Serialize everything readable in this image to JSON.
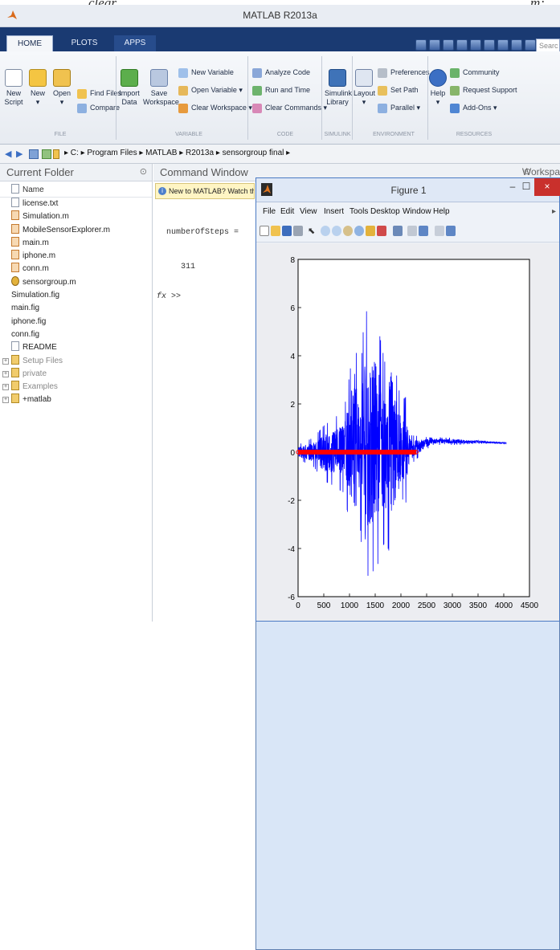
{
  "clipped_top": {
    "left": "clear",
    "right": "m;"
  },
  "window_title": "MATLAB R2013a",
  "tabs": [
    "HOME",
    "PLOTS",
    "APPS"
  ],
  "quick_search_placeholder": "Searc",
  "ribbon": {
    "file": {
      "new_script": [
        "New",
        "Script"
      ],
      "new": [
        "New",
        "▾"
      ],
      "open": [
        "Open",
        "▾"
      ],
      "find_files": "Find Files",
      "compare": "Compare",
      "group": "FILE"
    },
    "variable": {
      "import_data": [
        "Import",
        "Data"
      ],
      "save_workspace": [
        "Save",
        "Workspace"
      ],
      "new_variable": "New Variable",
      "open_variable": "Open Variable ▾",
      "clear_workspace": "Clear Workspace ▾",
      "group": "VARIABLE"
    },
    "code": {
      "analyze_code": "Analyze Code",
      "run_and_time": "Run and Time",
      "clear_commands": "Clear Commands ▾",
      "group": "CODE"
    },
    "simulink": {
      "library": [
        "Simulink",
        "Library"
      ],
      "group": "SIMULINK"
    },
    "environment": {
      "layout": [
        "Layout",
        "▾"
      ],
      "preferences": "Preferences",
      "set_path": "Set Path",
      "parallel": "Parallel ▾",
      "group": "ENVIRONMENT"
    },
    "resources": {
      "help": [
        "Help",
        "▾"
      ],
      "community": "Community",
      "request_support": "Request Support",
      "addons": "Add-Ons ▾",
      "group": "RESOURCES"
    }
  },
  "address_path": "▸ C: ▸ Program Files ▸ MATLAB ▸ R2013a ▸ sensorgroup final ▸",
  "current_folder": {
    "title": "Current Folder",
    "column": "Name",
    "files": [
      {
        "name": "license.txt",
        "kind": "txt"
      },
      {
        "name": "Simulation.m",
        "kind": "m"
      },
      {
        "name": "MobileSensorExplorer.m",
        "kind": "m"
      },
      {
        "name": "main.m",
        "kind": "m"
      },
      {
        "name": "iphone.m",
        "kind": "m"
      },
      {
        "name": "conn.m",
        "kind": "m"
      },
      {
        "name": "sensorgroup.m",
        "kind": "g"
      },
      {
        "name": "Simulation.fig",
        "kind": "fig"
      },
      {
        "name": "main.fig",
        "kind": "fig"
      },
      {
        "name": "iphone.fig",
        "kind": "fig"
      },
      {
        "name": "conn.fig",
        "kind": "fig"
      },
      {
        "name": "README",
        "kind": "txt"
      }
    ],
    "folders": [
      "Setup Files",
      "private",
      "Examples",
      "+matlab"
    ]
  },
  "command_window": {
    "title": "Command Window",
    "notice": "New to MATLAB? Watch this Vi",
    "output_var": "numberOfSteps =",
    "output_val": "311",
    "prompt": "fx >>"
  },
  "workspace_tab": "Workspa",
  "figure": {
    "title": "Figure 1",
    "menus": [
      "File",
      "Edit",
      "View",
      "Insert",
      "Tools",
      "Desktop",
      "Window",
      "Help"
    ]
  },
  "chart_data": {
    "type": "line",
    "xlim": [
      0,
      4500
    ],
    "ylim": [
      -6,
      8
    ],
    "xticks": [
      0,
      500,
      1000,
      1500,
      2000,
      2500,
      3000,
      3500,
      4000,
      4500
    ],
    "yticks": [
      -6,
      -4,
      -2,
      0,
      2,
      4,
      6,
      8
    ],
    "grid": false,
    "series": [
      {
        "color": "#0000ff",
        "style": "line",
        "description_points": [
          [
            0,
            0.3
          ],
          [
            300,
            0.6
          ],
          [
            500,
            1.1
          ],
          [
            700,
            1.4
          ],
          [
            900,
            1.8
          ],
          [
            1000,
            3.2
          ],
          [
            1100,
            4.8
          ],
          [
            1200,
            2.6
          ],
          [
            1300,
            6.2
          ],
          [
            1400,
            5.1
          ],
          [
            1500,
            5.8
          ],
          [
            1600,
            4.7
          ],
          [
            1700,
            3.6
          ],
          [
            1800,
            5.2
          ],
          [
            1900,
            3.4
          ],
          [
            2000,
            2.1
          ],
          [
            2100,
            2.3
          ],
          [
            2200,
            0.7
          ],
          [
            2600,
            0.6
          ],
          [
            3000,
            0.6
          ],
          [
            3500,
            0.5
          ],
          [
            4050,
            0.4
          ]
        ],
        "min_envelope": [
          [
            0,
            -0.3
          ],
          [
            300,
            -0.6
          ],
          [
            500,
            -1.2
          ],
          [
            700,
            -1.4
          ],
          [
            900,
            -1.7
          ],
          [
            1000,
            -3.0
          ],
          [
            1100,
            -3.9
          ],
          [
            1200,
            -2.8
          ],
          [
            1300,
            -5.9
          ],
          [
            1400,
            -4.6
          ],
          [
            1500,
            -5.2
          ],
          [
            1600,
            -4.1
          ],
          [
            1700,
            -3.7
          ],
          [
            1800,
            -4.3
          ],
          [
            1900,
            -3.1
          ],
          [
            2000,
            -1.9
          ],
          [
            2100,
            -2.1
          ],
          [
            2200,
            -0.5
          ],
          [
            2600,
            0.3
          ],
          [
            3000,
            0.3
          ],
          [
            3500,
            0.35
          ],
          [
            4050,
            0.35
          ]
        ]
      },
      {
        "color": "#ff0000",
        "style": "markers",
        "x": [
          0,
          100,
          200,
          300,
          400,
          500,
          600,
          700,
          800,
          900,
          1000,
          1100,
          1200,
          1300,
          1400,
          1500,
          1600,
          1700,
          1800,
          1900,
          2000,
          2050,
          2100,
          2200,
          2300
        ],
        "y": [
          0,
          0,
          0,
          0,
          0,
          0,
          0,
          0,
          0,
          0,
          0,
          0,
          0,
          0,
          0,
          0,
          0,
          0,
          0,
          0,
          0,
          0,
          0,
          0,
          0
        ]
      }
    ]
  }
}
